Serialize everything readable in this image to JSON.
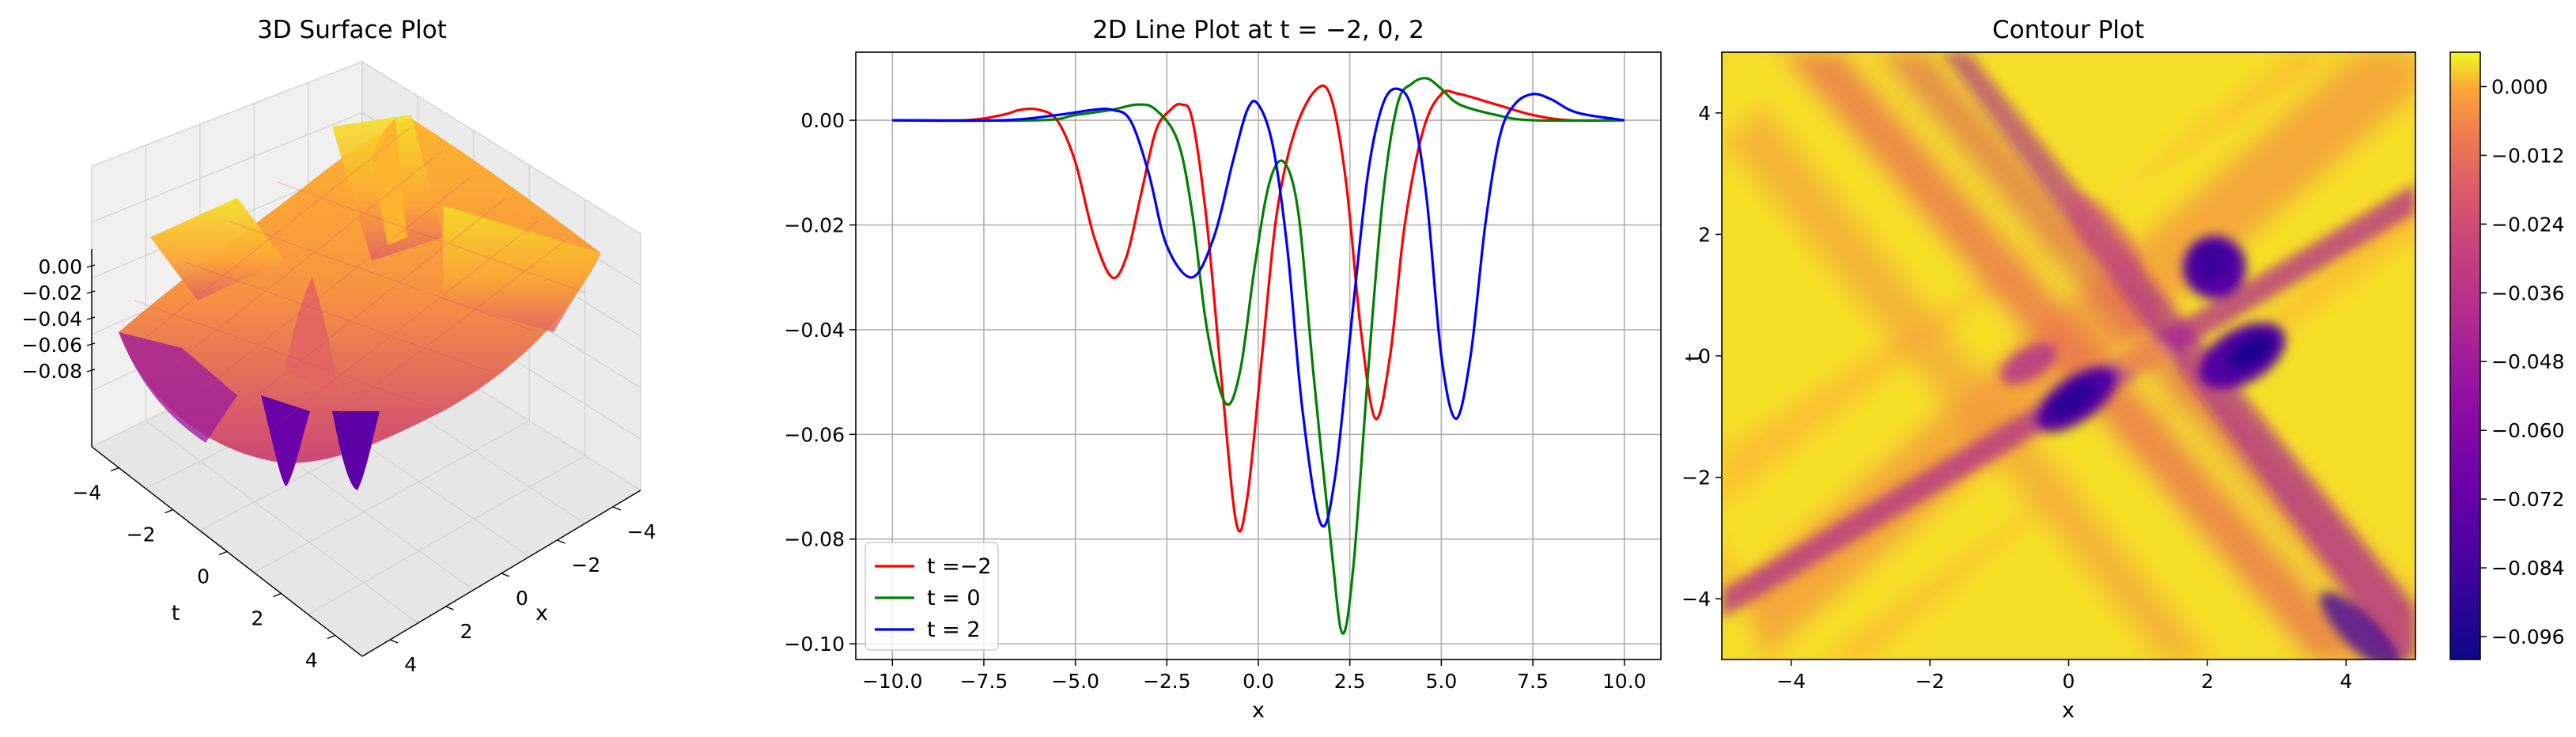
{
  "chart_data": [
    {
      "type": "surface3d",
      "title": "3D Surface Plot",
      "xlabel": "x",
      "ylabel": "t",
      "zlabel": "",
      "x_ticks": [
        "−4",
        "−2",
        "0",
        "2",
        "4"
      ],
      "t_ticks": [
        "−4",
        "−2",
        "0",
        "2",
        "4"
      ],
      "z_ticks": [
        "0.00",
        "−0.02",
        "−0.04",
        "−0.06",
        "−0.08"
      ],
      "xlim": [
        -5,
        5
      ],
      "tlim": [
        -5,
        5
      ],
      "zlim": [
        -0.1,
        0.01
      ],
      "colormap": "plasma"
    },
    {
      "type": "line",
      "title": "2D Line Plot at t = −2, 0, 2",
      "xlabel": "x",
      "ylabel": "",
      "xlim": [
        -11,
        11
      ],
      "ylim": [
        -0.103,
        0.013
      ],
      "x_ticks": [
        "−10.0",
        "−7.5",
        "−5.0",
        "−2.5",
        "0.0",
        "2.5",
        "5.0",
        "7.5",
        "10.0"
      ],
      "y_ticks": [
        "0.00",
        "−0.02",
        "−0.04",
        "−0.06",
        "−0.08",
        "−0.10"
      ],
      "grid": true,
      "legend_position": "lower-left",
      "series": [
        {
          "name": "t =−2",
          "color": "#ff0000",
          "points": [
            [
              -10,
              0
            ],
            [
              -8,
              0
            ],
            [
              -7,
              0.001
            ],
            [
              -6.5,
              0.002
            ],
            [
              -6,
              0.002
            ],
            [
              -5.5,
              0
            ],
            [
              -5,
              -0.008
            ],
            [
              -4.5,
              -0.022
            ],
            [
              -4,
              -0.03
            ],
            [
              -3.6,
              -0.026
            ],
            [
              -3.2,
              -0.014
            ],
            [
              -2.8,
              -0.002
            ],
            [
              -2.4,
              0.002
            ],
            [
              -2.1,
              0.003
            ],
            [
              -1.8,
              0.0
            ],
            [
              -1.4,
              -0.02
            ],
            [
              -1.0,
              -0.05
            ],
            [
              -0.6,
              -0.077
            ],
            [
              -0.3,
              -0.072
            ],
            [
              0.1,
              -0.045
            ],
            [
              0.5,
              -0.018
            ],
            [
              1.0,
              -0.002
            ],
            [
              1.6,
              0.006
            ],
            [
              2.0,
              0.004
            ],
            [
              2.4,
              -0.012
            ],
            [
              2.8,
              -0.04
            ],
            [
              3.2,
              -0.057
            ],
            [
              3.6,
              -0.045
            ],
            [
              4.0,
              -0.02
            ],
            [
              4.5,
              -0.002
            ],
            [
              5.0,
              0.005
            ],
            [
              5.5,
              0.005
            ],
            [
              6.5,
              0.003
            ],
            [
              7.5,
              0.001
            ],
            [
              8.5,
              0
            ],
            [
              10,
              0
            ]
          ]
        },
        {
          "name": "t = 0",
          "color": "#008000",
          "points": [
            [
              -10,
              0
            ],
            [
              -6,
              0
            ],
            [
              -5,
              0.001
            ],
            [
              -4,
              0.002
            ],
            [
              -3.3,
              0.003
            ],
            [
              -2.8,
              0.002
            ],
            [
              -2.2,
              -0.004
            ],
            [
              -1.8,
              -0.018
            ],
            [
              -1.4,
              -0.04
            ],
            [
              -0.9,
              -0.054
            ],
            [
              -0.5,
              -0.048
            ],
            [
              -0.1,
              -0.028
            ],
            [
              0.3,
              -0.012
            ],
            [
              0.7,
              -0.008
            ],
            [
              1.1,
              -0.018
            ],
            [
              1.5,
              -0.048
            ],
            [
              2.0,
              -0.082
            ],
            [
              2.3,
              -0.098
            ],
            [
              2.6,
              -0.085
            ],
            [
              3.0,
              -0.048
            ],
            [
              3.4,
              -0.015
            ],
            [
              3.8,
              0.003
            ],
            [
              4.2,
              0.007
            ],
            [
              4.6,
              0.008
            ],
            [
              5.0,
              0.006
            ],
            [
              5.5,
              0.003
            ],
            [
              6.5,
              0.001
            ],
            [
              7.5,
              0
            ],
            [
              10,
              0
            ]
          ]
        },
        {
          "name": "t = 2",
          "color": "#0000ff",
          "points": [
            [
              -10,
              0
            ],
            [
              -7,
              0
            ],
            [
              -5.5,
              0.001
            ],
            [
              -4.5,
              0.002
            ],
            [
              -4.0,
              0.002
            ],
            [
              -3.5,
              0.0
            ],
            [
              -3.0,
              -0.01
            ],
            [
              -2.5,
              -0.024
            ],
            [
              -1.8,
              -0.03
            ],
            [
              -1.2,
              -0.022
            ],
            [
              -0.7,
              -0.008
            ],
            [
              -0.3,
              0.002
            ],
            [
              0.0,
              0.003
            ],
            [
              0.4,
              -0.005
            ],
            [
              0.8,
              -0.025
            ],
            [
              1.2,
              -0.055
            ],
            [
              1.7,
              -0.077
            ],
            [
              2.1,
              -0.068
            ],
            [
              2.6,
              -0.035
            ],
            [
              3.0,
              -0.01
            ],
            [
              3.4,
              0.003
            ],
            [
              3.8,
              0.006
            ],
            [
              4.2,
              0.002
            ],
            [
              4.6,
              -0.015
            ],
            [
              5.0,
              -0.045
            ],
            [
              5.4,
              -0.057
            ],
            [
              5.8,
              -0.045
            ],
            [
              6.2,
              -0.02
            ],
            [
              6.6,
              -0.003
            ],
            [
              7.0,
              0.003
            ],
            [
              7.5,
              0.005
            ],
            [
              8.0,
              0.004
            ],
            [
              8.5,
              0.002
            ],
            [
              9.0,
              0.001
            ],
            [
              10,
              0
            ]
          ]
        }
      ]
    },
    {
      "type": "heatmap",
      "title": "Contour Plot",
      "xlabel": "x",
      "ylabel": "t",
      "xlim": [
        -5,
        5
      ],
      "ylim": [
        -5,
        5
      ],
      "x_ticks": [
        "−4",
        "−2",
        "0",
        "2",
        "4"
      ],
      "y_ticks": [
        "4",
        "2",
        "0",
        "−2",
        "−4"
      ],
      "colormap": "plasma",
      "colorbar_ticks": [
        "0.000",
        "−0.012",
        "−0.024",
        "−0.036",
        "−0.048",
        "−0.060",
        "−0.072",
        "−0.084",
        "−0.096"
      ],
      "colorbar_range": [
        -0.1,
        0.006
      ]
    }
  ]
}
